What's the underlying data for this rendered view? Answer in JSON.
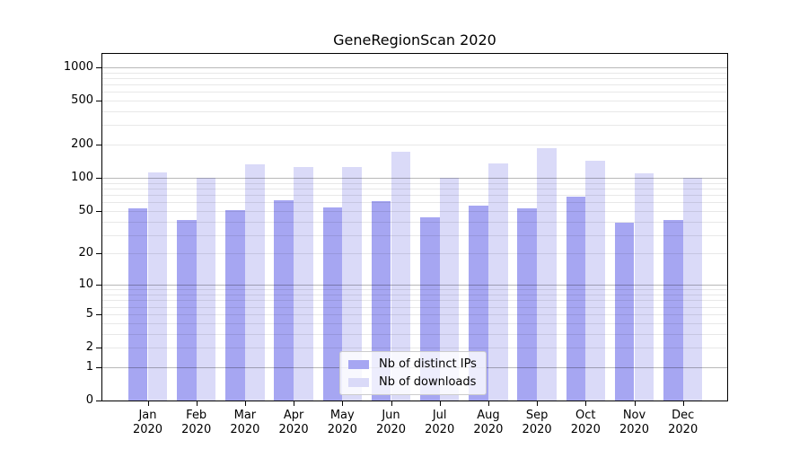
{
  "chart_data": {
    "type": "bar",
    "title": "GeneRegionScan 2020",
    "months": [
      "Jan",
      "Feb",
      "Mar",
      "Apr",
      "May",
      "Jun",
      "Jul",
      "Aug",
      "Sep",
      "Oct",
      "Nov",
      "Dec"
    ],
    "year": "2020",
    "categories": [
      "Jan 2020",
      "Feb 2020",
      "Mar 2020",
      "Apr 2020",
      "May 2020",
      "Jun 2020",
      "Jul 2020",
      "Aug 2020",
      "Sep 2020",
      "Oct 2020",
      "Nov 2020",
      "Dec 2020"
    ],
    "series": [
      {
        "name": "Nb of distinct IPs",
        "color": "#a6a6f2",
        "values": [
          53,
          41,
          51,
          62,
          54,
          61,
          44,
          56,
          53,
          68,
          39,
          41
        ]
      },
      {
        "name": "Nb of downloads",
        "color": "#dadaf8",
        "values": [
          113,
          101,
          134,
          126,
          126,
          173,
          101,
          135,
          186,
          144,
          111,
          101
        ]
      }
    ],
    "y_scale": "log10(1+value)",
    "y_ticks": [
      0,
      1,
      2,
      5,
      10,
      20,
      50,
      100,
      200,
      500,
      1000
    ],
    "major_gridlines": [
      1,
      10,
      100,
      1000
    ],
    "ylim": [
      0,
      1320
    ],
    "grid": true,
    "legend_position": "lower-center",
    "xlabel": "",
    "ylabel": ""
  },
  "colors": {
    "major_gridline": "#b8b8b8",
    "minor_gridline": "#e6e6e6",
    "axis": "#000000",
    "legend_border": "#cccccc",
    "background": "#ffffff"
  }
}
